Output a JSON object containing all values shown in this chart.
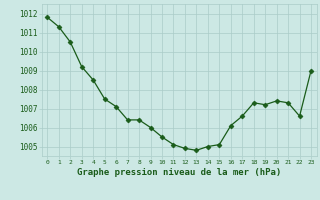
{
  "x": [
    0,
    1,
    2,
    3,
    4,
    5,
    6,
    7,
    8,
    9,
    10,
    11,
    12,
    13,
    14,
    15,
    16,
    17,
    18,
    19,
    20,
    21,
    22,
    23
  ],
  "y": [
    1011.8,
    1011.3,
    1010.5,
    1009.2,
    1008.5,
    1007.5,
    1007.1,
    1006.4,
    1006.4,
    1006.0,
    1005.5,
    1005.1,
    1004.9,
    1004.8,
    1005.0,
    1005.1,
    1006.1,
    1006.6,
    1007.3,
    1007.2,
    1007.4,
    1007.3,
    1006.6,
    1009.0
  ],
  "ylim": [
    1004.5,
    1012.5
  ],
  "yticks": [
    1005,
    1006,
    1007,
    1008,
    1009,
    1010,
    1011,
    1012
  ],
  "xlabel": "Graphe pression niveau de la mer (hPa)",
  "line_color": "#1a5c1a",
  "marker_color": "#1a5c1a",
  "bg_color": "#cce8e4",
  "grid_color": "#aaccc8",
  "tick_label_color": "#1a5c1a",
  "xlabel_color": "#1a5c1a"
}
